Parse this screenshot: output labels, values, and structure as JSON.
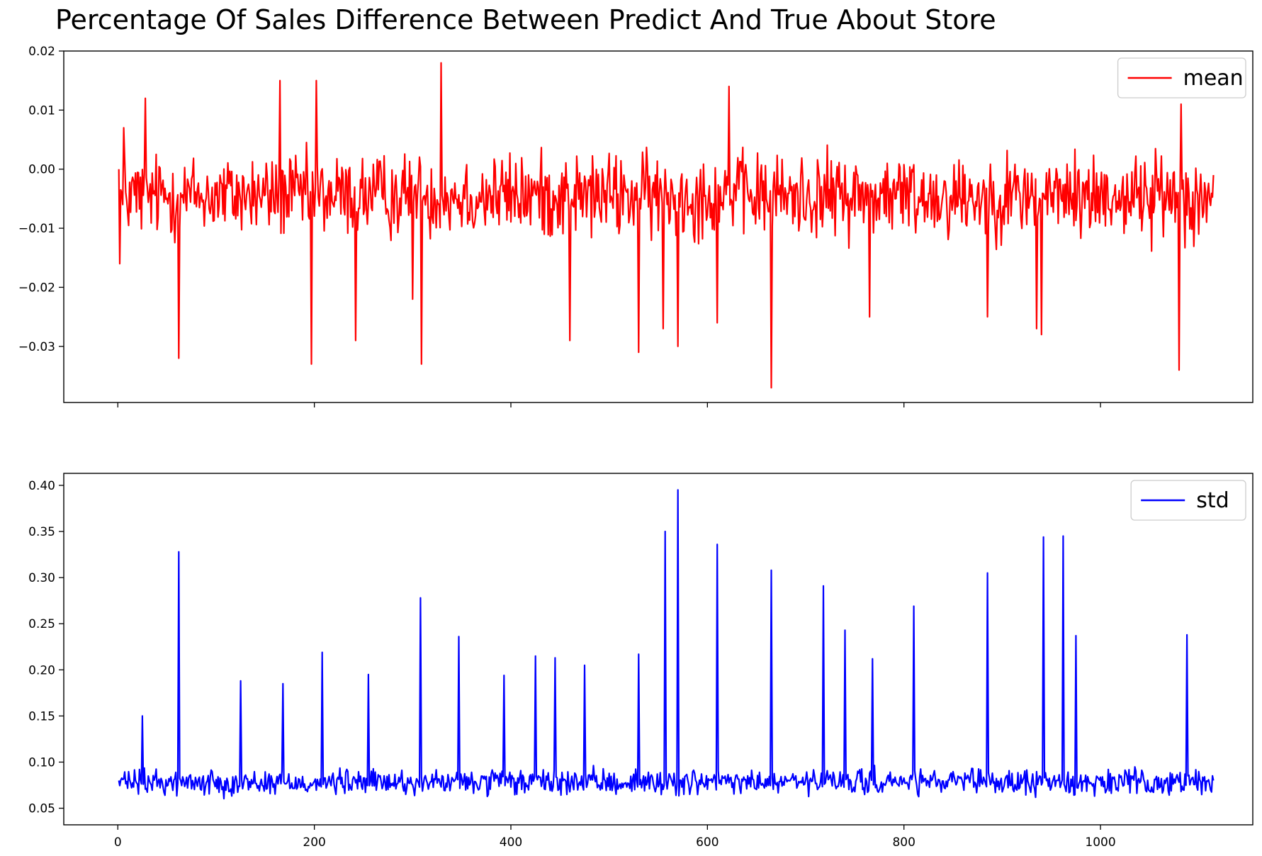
{
  "figure": {
    "title": "Percentage Of Sales Difference Between Predict And True About Store"
  },
  "chart_data": [
    {
      "type": "line",
      "title": "",
      "xlabel": "",
      "ylabel": "",
      "xlim": [
        -55,
        1155
      ],
      "ylim": [
        -0.0395,
        0.02
      ],
      "x_ticks": [
        0,
        200,
        400,
        600,
        800,
        1000
      ],
      "x_tick_labels_visible": false,
      "y_ticks": [
        -0.03,
        -0.02,
        -0.01,
        0.0,
        0.01,
        0.02
      ],
      "y_tick_labels": [
        "−0.03",
        "−0.02",
        "−0.01",
        "0.00",
        "0.01",
        "0.02"
      ],
      "legend": {
        "position": "top-right"
      },
      "grid": false,
      "series": [
        {
          "name": "mean",
          "color": "#ff0000",
          "x_start": 1,
          "x_end": 1115,
          "noise_range": [
            -0.015,
            0.006
          ],
          "points": [
            [
              1,
              0.0
            ],
            [
              2,
              -0.016
            ],
            [
              5,
              -0.006
            ],
            [
              6,
              0.007
            ],
            [
              28,
              0.012
            ],
            [
              62,
              -0.032
            ],
            [
              165,
              0.015
            ],
            [
              197,
              -0.033
            ],
            [
              202,
              0.015
            ],
            [
              242,
              -0.029
            ],
            [
              300,
              -0.022
            ],
            [
              309,
              -0.033
            ],
            [
              329,
              0.018
            ],
            [
              460,
              -0.029
            ],
            [
              530,
              -0.031
            ],
            [
              555,
              -0.027
            ],
            [
              570,
              -0.03
            ],
            [
              610,
              -0.026
            ],
            [
              622,
              0.014
            ],
            [
              665,
              -0.037
            ],
            [
              765,
              -0.025
            ],
            [
              885,
              -0.025
            ],
            [
              935,
              -0.027
            ],
            [
              940,
              -0.028
            ],
            [
              1080,
              -0.034
            ],
            [
              1082,
              0.011
            ],
            [
              1115,
              -0.001
            ]
          ]
        }
      ]
    },
    {
      "type": "line",
      "title": "",
      "xlabel": "",
      "ylabel": "",
      "xlim": [
        -55,
        1155
      ],
      "ylim": [
        0.032,
        0.413
      ],
      "x_ticks": [
        0,
        200,
        400,
        600,
        800,
        1000
      ],
      "x_tick_labels": [
        "0",
        "200",
        "400",
        "600",
        "800",
        "1000"
      ],
      "y_ticks": [
        0.05,
        0.1,
        0.15,
        0.2,
        0.25,
        0.3,
        0.35,
        0.4
      ],
      "y_tick_labels": [
        "0.05",
        "0.10",
        "0.15",
        "0.20",
        "0.25",
        "0.30",
        "0.35",
        "0.40"
      ],
      "legend": {
        "position": "top-right"
      },
      "grid": false,
      "series": [
        {
          "name": "std",
          "color": "#0000ff",
          "x_start": 1,
          "x_end": 1115,
          "noise_range": [
            0.058,
            0.098
          ],
          "points": [
            [
              1,
              0.08
            ],
            [
              25,
              0.15
            ],
            [
              62,
              0.328
            ],
            [
              125,
              0.188
            ],
            [
              168,
              0.185
            ],
            [
              208,
              0.219
            ],
            [
              255,
              0.195
            ],
            [
              308,
              0.278
            ],
            [
              347,
              0.236
            ],
            [
              393,
              0.194
            ],
            [
              425,
              0.215
            ],
            [
              445,
              0.213
            ],
            [
              475,
              0.205
            ],
            [
              530,
              0.217
            ],
            [
              557,
              0.35
            ],
            [
              570,
              0.395
            ],
            [
              610,
              0.336
            ],
            [
              665,
              0.308
            ],
            [
              718,
              0.291
            ],
            [
              740,
              0.243
            ],
            [
              768,
              0.212
            ],
            [
              810,
              0.269
            ],
            [
              885,
              0.305
            ],
            [
              942,
              0.344
            ],
            [
              962,
              0.345
            ],
            [
              975,
              0.237
            ],
            [
              1088,
              0.238
            ],
            [
              1115,
              0.08
            ]
          ]
        }
      ]
    }
  ]
}
